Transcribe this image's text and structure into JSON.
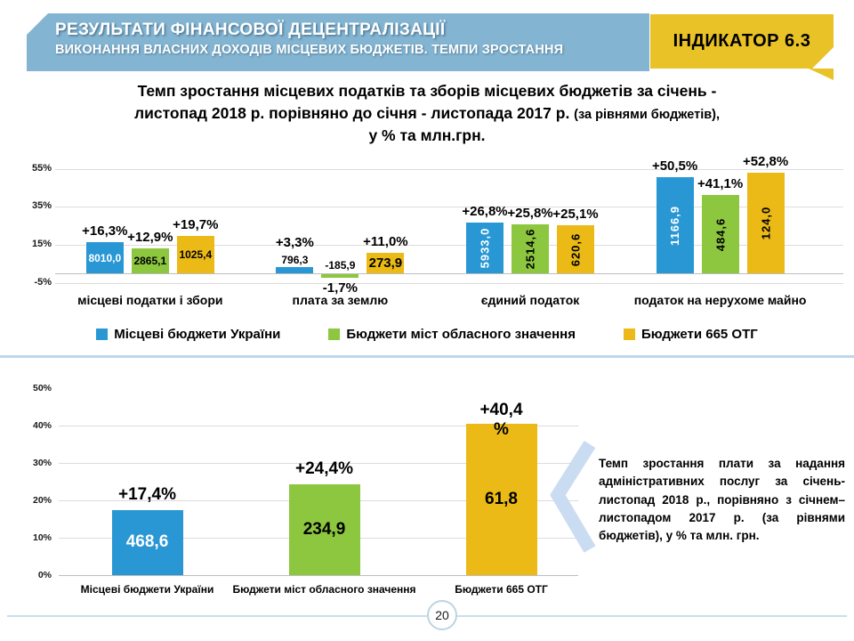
{
  "header": {
    "banner_line1": "РЕЗУЛЬТАТИ ФІНАНСОВОЇ ДЕЦЕНТРАЛІЗАЦІЇ",
    "banner_line2": "ВИКОНАННЯ ВЛАСНИХ ДОХОДІВ МІСЦЕВИХ БЮДЖЕТІВ. ТЕМПИ ЗРОСТАННЯ",
    "indicator_label": "ІНДИКАТОР 6.3",
    "colors": {
      "banner_bg": "#83B5D2",
      "indicator_bg": "#E9C227"
    }
  },
  "title": {
    "line1": "Темп зростання місцевих податків та зборів місцевих бюджетів за січень -",
    "line2_main": "листопад 2018 р. порівняно до січня - листопада 2017 р. ",
    "line2_small": "(за рівнями бюджетів),",
    "line3": "у % та млн.грн."
  },
  "chart_data": [
    {
      "type": "bar",
      "title": "Темп зростання місцевих податків та зборів місцевих бюджетів за січень - листопад 2018 р. порівняно до січня - листопада 2017 р. (за рівнями бюджетів), у % та млн.грн.",
      "unit": "% та млн.грн.",
      "categories": [
        "місцеві податки і збори",
        "плата за землю",
        "єдиний податок",
        "податок на нерухоме майно"
      ],
      "y_axis": {
        "tick_labels": [
          "55%",
          "35%",
          "15%",
          "-5%"
        ],
        "tick_values": [
          55,
          35,
          15,
          -5
        ],
        "ylim": [
          -10,
          60
        ],
        "grid": true
      },
      "legend_position": "bottom",
      "series": [
        {
          "name": "Місцеві бюджети України",
          "color": "#2897D4",
          "growth_pct": [
            16.3,
            3.3,
            26.8,
            50.5
          ],
          "pct_labels": [
            "+16,3%",
            "+3,3%",
            "+26,8%",
            "+50,5%"
          ],
          "value_labels": [
            "8010,0",
            "796,3",
            "5933,0",
            "1166,9"
          ],
          "value_label_styles": [
            "in",
            "out",
            "inV",
            "inV"
          ],
          "value_text_color": "#FFFFFF"
        },
        {
          "name": "Бюджети міст обласного значення",
          "color": "#8DC63F",
          "growth_pct": [
            12.9,
            -1.7,
            25.8,
            41.1
          ],
          "pct_labels": [
            "+12,9%",
            "-1,7%",
            "+25,8%",
            "+41,1%"
          ],
          "value_labels": [
            "2865,1",
            "-185,9",
            "2514,6",
            "484,6"
          ],
          "value_label_styles": [
            "in",
            "neg",
            "inV",
            "inV"
          ],
          "value_text_color": "#000000"
        },
        {
          "name": "Бюджети 665 ОТГ",
          "color": "#EBBA16",
          "growth_pct": [
            19.7,
            11.0,
            25.1,
            52.8
          ],
          "pct_labels": [
            "+19,7%",
            "+11,0%",
            "+25,1%",
            "+52,8%"
          ],
          "value_labels": [
            "1025,4",
            "273,9",
            "620,6",
            "124,0"
          ],
          "value_label_styles": [
            "in",
            "inBig",
            "inV",
            "inV"
          ],
          "value_text_color": "#000000"
        }
      ]
    },
    {
      "type": "bar",
      "categories": [
        "Місцеві  бюджети України",
        "Бюджети міст  обласного  значення",
        "Бюджети 665 ОТГ"
      ],
      "y_axis": {
        "tick_labels": [
          "0%",
          "10%",
          "20%",
          "30%",
          "40%",
          "50%"
        ],
        "tick_values": [
          0,
          10,
          20,
          30,
          40,
          50
        ],
        "ylim": [
          0,
          50
        ],
        "grid": true
      },
      "bars": [
        {
          "category": "Місцеві  бюджети України",
          "color": "#2897D4",
          "growth_pct": 17.4,
          "pct_label": "+17,4%",
          "pct_two_line": false,
          "value_label": "468,6",
          "value_text_color": "#FFFFFF"
        },
        {
          "category": "Бюджети міст  обласного  значення",
          "color": "#8DC63F",
          "growth_pct": 24.4,
          "pct_label": "+24,4%",
          "pct_two_line": false,
          "value_label": "234,9",
          "value_text_color": "#000000"
        },
        {
          "category": "Бюджети 665 ОТГ",
          "color": "#EBBA16",
          "growth_pct": 40.4,
          "pct_label": "+40,4 %",
          "pct_two_line": true,
          "value_label": "61,8",
          "value_text_color": "#000000"
        }
      ]
    }
  ],
  "note": {
    "text": "Темп зростання плати за надання адміністративних послуг за січень-листопад 2018 р., порівняно з січнем–листопадом 2017 р. (за рівнями бюджетів), у % та млн. грн."
  },
  "decorations": {
    "chevron_color": "#C9DCF2",
    "divider_color": "#BDD7EE"
  },
  "footer": {
    "page_number": "20"
  }
}
